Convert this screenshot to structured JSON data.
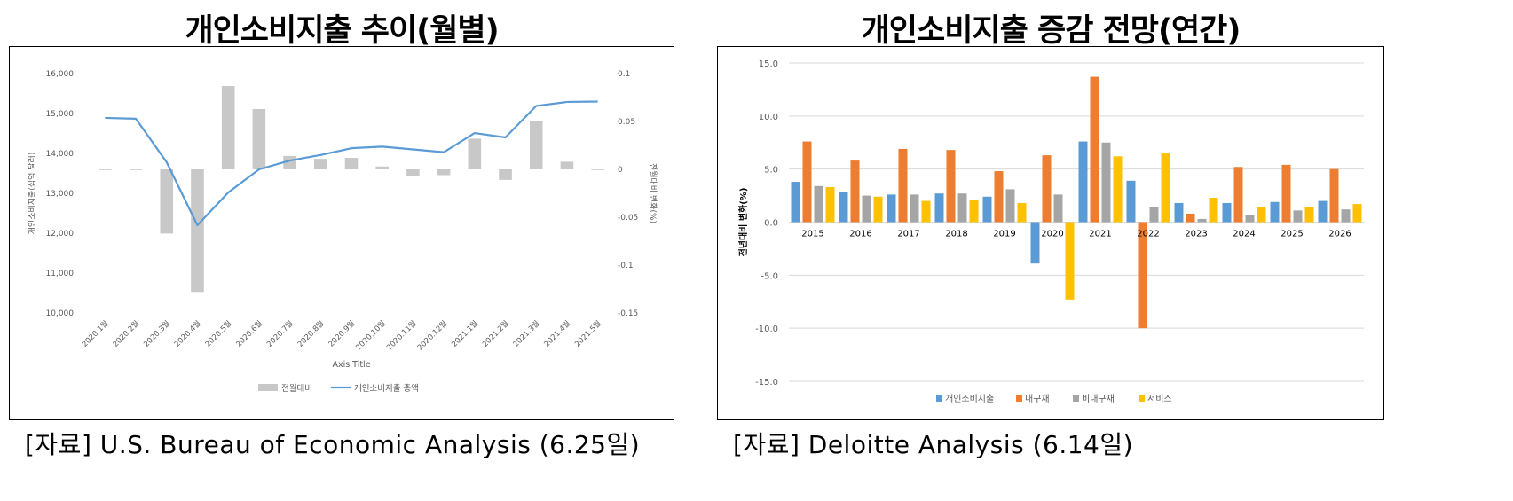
{
  "left_panel": {
    "title": "개인소비지출 추이(월별)",
    "source": "[자료] U.S. Bureau of Economic Analysis (6.25일)"
  },
  "right_panel": {
    "title": "개인소비지출 증감 전망(연간)",
    "source": "[자료] Deloitte Analysis (6.14일)"
  },
  "chart_data": [
    {
      "type": "bar+line",
      "categories": [
        "2020.1월",
        "2020.2월",
        "2020.3월",
        "2020.4월",
        "2020.5월",
        "2020.6월",
        "2020.7월",
        "2020.8월",
        "2020.9월",
        "2020.10월",
        "2020.11월",
        "2020.12월",
        "2021.1월",
        "2021.2월",
        "2021.3월",
        "2021.4월",
        "2021.5월"
      ],
      "series": [
        {
          "name": "전월대비",
          "kind": "bar",
          "axis": "right",
          "color": "#c8c8c8",
          "values": [
            0.0,
            0.0,
            -0.067,
            -0.128,
            0.087,
            0.063,
            0.014,
            0.011,
            0.012,
            0.003,
            -0.007,
            -0.006,
            0.032,
            -0.011,
            0.05,
            0.008,
            0.0
          ]
        },
        {
          "name": "개인소비지출 총액",
          "kind": "line",
          "axis": "left",
          "color": "#5b9bd5",
          "values": [
            14890,
            14870,
            13780,
            12200,
            13020,
            13600,
            13820,
            13960,
            14130,
            14170,
            14100,
            14030,
            14510,
            14400,
            15190,
            15290,
            15300
          ]
        }
      ],
      "ylabel_left": "개인소비지출(십억 달러)",
      "ylabel_right": "전월대비 변화(%)",
      "xlabel": "Axis Title",
      "ylim_left": [
        10000,
        16000
      ],
      "yticks_left": [
        "10,000",
        "11,000",
        "12,000",
        "13,000",
        "14,000",
        "15,000",
        "16,000"
      ],
      "ylim_right": [
        -0.15,
        0.1
      ],
      "yticks_right": [
        "-0.15",
        "-0.1",
        "-0.05",
        "0",
        "0.05",
        "0.1"
      ],
      "legend": "bottom",
      "grid": false
    },
    {
      "type": "bar",
      "categories": [
        "2015",
        "2016",
        "2017",
        "2018",
        "2019",
        "2020",
        "2021",
        "2022",
        "2023",
        "2024",
        "2025",
        "2026"
      ],
      "series": [
        {
          "name": "개인소비지출",
          "color": "#5b9bd5",
          "values": [
            3.8,
            2.8,
            2.6,
            2.7,
            2.4,
            -3.9,
            7.6,
            3.9,
            1.8,
            1.8,
            1.9,
            2.0
          ]
        },
        {
          "name": "내구재",
          "color": "#ed7d31",
          "values": [
            7.6,
            5.8,
            6.9,
            6.8,
            4.8,
            6.3,
            13.7,
            -10.0,
            0.8,
            5.2,
            5.4,
            5.0
          ]
        },
        {
          "name": "비내구재",
          "color": "#a5a5a5",
          "values": [
            3.4,
            2.5,
            2.6,
            2.7,
            3.1,
            2.6,
            7.5,
            1.4,
            0.3,
            0.7,
            1.1,
            1.2
          ]
        },
        {
          "name": "서비스",
          "color": "#ffc000",
          "values": [
            3.3,
            2.4,
            2.0,
            2.1,
            1.8,
            -7.3,
            6.2,
            6.5,
            2.3,
            1.4,
            1.4,
            1.7
          ]
        }
      ],
      "ylabel": "전년대비 변화(%)",
      "ylim": [
        -15,
        15
      ],
      "yticks": [
        "-15.0",
        "-10.0",
        "-5.0",
        "0.0",
        "5.0",
        "10.0",
        "15.0"
      ],
      "legend": "bottom",
      "grid": true
    }
  ]
}
